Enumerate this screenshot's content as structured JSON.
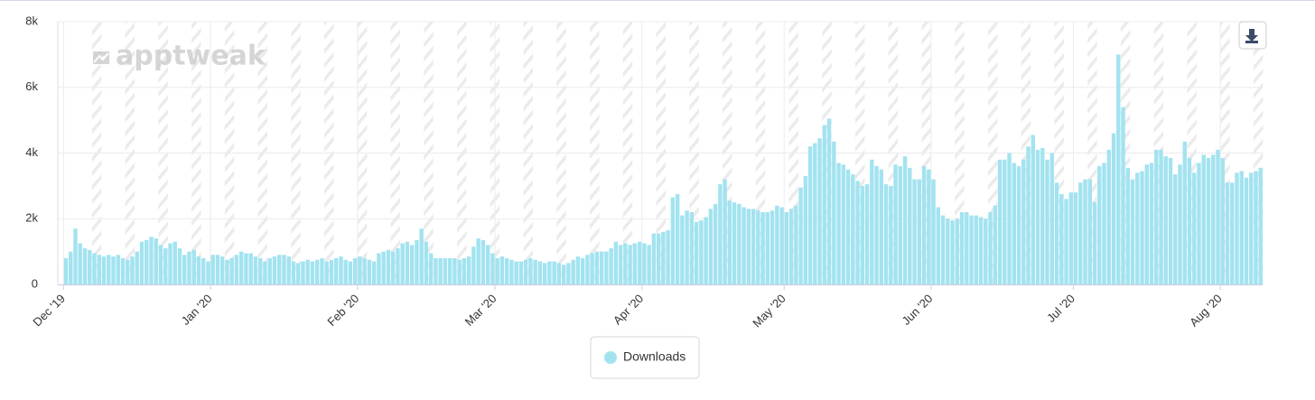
{
  "chart_data": {
    "type": "bar",
    "watermark": "apptweak",
    "ylim": [
      0,
      8000
    ],
    "yticks": [
      0,
      {
        "value": 2000,
        "label": "2k"
      },
      {
        "value": 4000,
        "label": "4k"
      },
      {
        "value": 6000,
        "label": "6k"
      },
      {
        "value": 8000,
        "label": "8k"
      }
    ],
    "grid": true,
    "legend": "bottom",
    "categories": [
      "Dec '19",
      null,
      null,
      null,
      null,
      null,
      null,
      null,
      null,
      null,
      null,
      null,
      null,
      null,
      null,
      null,
      null,
      null,
      null,
      null,
      null,
      null,
      null,
      null,
      null,
      null,
      null,
      null,
      null,
      null,
      null,
      "Jan '20",
      null,
      null,
      null,
      null,
      null,
      null,
      null,
      null,
      null,
      null,
      null,
      null,
      null,
      null,
      null,
      null,
      null,
      null,
      null,
      null,
      null,
      null,
      null,
      null,
      null,
      null,
      null,
      null,
      null,
      null,
      "Feb '20",
      null,
      null,
      null,
      null,
      null,
      null,
      null,
      null,
      null,
      null,
      null,
      null,
      null,
      null,
      null,
      null,
      null,
      null,
      null,
      null,
      null,
      null,
      null,
      null,
      null,
      null,
      null,
      null,
      "Mar '20",
      null,
      null,
      null,
      null,
      null,
      null,
      null,
      null,
      null,
      null,
      null,
      null,
      null,
      null,
      null,
      null,
      null,
      null,
      null,
      null,
      null,
      null,
      null,
      null,
      null,
      null,
      null,
      null,
      null,
      null,
      "Apr '20",
      null,
      null,
      null,
      null,
      null,
      null,
      null,
      null,
      null,
      null,
      null,
      null,
      null,
      null,
      null,
      null,
      null,
      null,
      null,
      null,
      null,
      null,
      null,
      null,
      null,
      null,
      null,
      null,
      null,
      "May '20",
      null,
      null,
      null,
      null,
      null,
      null,
      null,
      null,
      null,
      null,
      null,
      null,
      null,
      null,
      null,
      null,
      null,
      null,
      null,
      null,
      null,
      null,
      null,
      null,
      null,
      null,
      null,
      null,
      null,
      null,
      "Jun '20",
      null,
      null,
      null,
      null,
      null,
      null,
      null,
      null,
      null,
      null,
      null,
      null,
      null,
      null,
      null,
      null,
      null,
      null,
      null,
      null,
      null,
      null,
      null,
      null,
      null,
      null,
      null,
      null,
      null,
      "Jul '20",
      null,
      null,
      null,
      null,
      null,
      null,
      null,
      null,
      null,
      null,
      null,
      null,
      null,
      null,
      null,
      null,
      null,
      null,
      null,
      null,
      null,
      null,
      null,
      null,
      null,
      null,
      null,
      null,
      null,
      null,
      "Aug '20",
      null,
      null,
      null,
      null,
      null,
      null,
      null,
      null
    ],
    "series": [
      {
        "name": "Downloads",
        "color": "#a3e3f0",
        "values": [
          800,
          1000,
          1700,
          1250,
          1100,
          1050,
          950,
          900,
          850,
          900,
          850,
          900,
          800,
          750,
          850,
          1000,
          1300,
          1350,
          1450,
          1400,
          1200,
          1100,
          1250,
          1300,
          1100,
          900,
          1000,
          1050,
          850,
          800,
          700,
          900,
          900,
          850,
          750,
          800,
          900,
          1000,
          950,
          950,
          850,
          800,
          700,
          800,
          850,
          900,
          900,
          850,
          700,
          650,
          700,
          750,
          700,
          750,
          800,
          700,
          750,
          800,
          850,
          750,
          700,
          800,
          850,
          800,
          750,
          700,
          950,
          1000,
          1050,
          1000,
          1100,
          1250,
          1300,
          1200,
          1350,
          1700,
          1300,
          950,
          800,
          800,
          800,
          800,
          800,
          750,
          800,
          850,
          1150,
          1400,
          1350,
          1200,
          950,
          800,
          850,
          800,
          750,
          700,
          700,
          750,
          800,
          750,
          700,
          650,
          700,
          700,
          650,
          600,
          650,
          750,
          850,
          800,
          900,
          950,
          1000,
          1000,
          1000,
          1100,
          1300,
          1200,
          1250,
          1200,
          1250,
          1300,
          1250,
          1200,
          1550,
          1550,
          1600,
          1650,
          2650,
          2750,
          2100,
          2250,
          2200,
          1900,
          1950,
          2050,
          2300,
          2450,
          3050,
          3200,
          2550,
          2500,
          2450,
          2350,
          2300,
          2300,
          2250,
          2200,
          2200,
          2250,
          2400,
          2350,
          2200,
          2300,
          2400,
          2950,
          3300,
          4200,
          4300,
          4450,
          4850,
          5050,
          4350,
          3700,
          3650,
          3500,
          3350,
          3150,
          3000,
          3050,
          3800,
          3600,
          3500,
          3050,
          3000,
          3650,
          3600,
          3900,
          3550,
          3200,
          3200,
          3600,
          3500,
          3200,
          2350,
          2100,
          2000,
          1950,
          2000,
          2200,
          2200,
          2100,
          2100,
          2050,
          2000,
          2200,
          2400,
          3800,
          3800,
          4000,
          3700,
          3600,
          3800,
          4200,
          4550,
          4100,
          4150,
          3800,
          4000,
          3100,
          2750,
          2600,
          2800,
          2800,
          3100,
          3200,
          3200,
          2500,
          3600,
          3700,
          4100,
          4600,
          7000,
          5400,
          3550,
          3200,
          3400,
          3450,
          3650,
          3700,
          4100,
          4100,
          3900,
          3850,
          3350,
          3650,
          4350,
          3850,
          3400,
          3700,
          3950,
          3850,
          3950,
          4100,
          3850,
          3100,
          3100,
          3400,
          3450,
          3250,
          3400,
          3450,
          3550
        ]
      }
    ]
  }
}
